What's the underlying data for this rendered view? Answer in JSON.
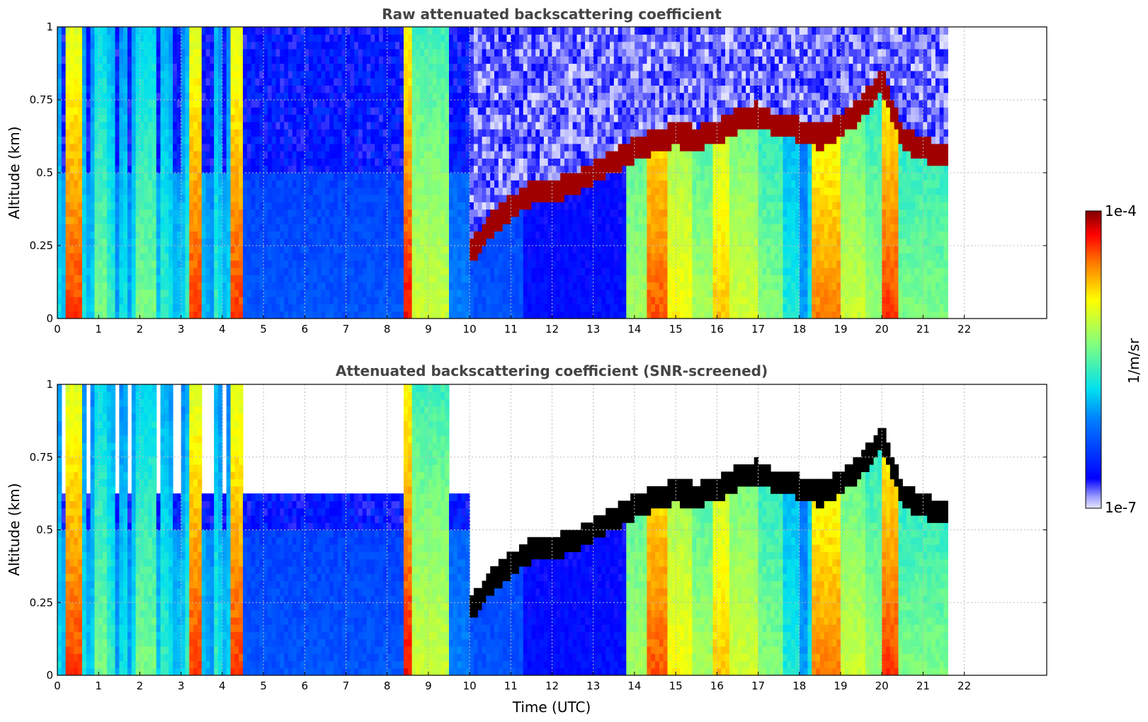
{
  "figure": {
    "xlabel": "Time (UTC)"
  },
  "chart_data": [
    {
      "type": "heatmap",
      "title": "Raw attenuated backscattering coefficient",
      "ylabel": "Altitude (km)",
      "xlim": [
        0,
        24
      ],
      "ylim": [
        0,
        1
      ],
      "data_end_x": 21.6,
      "x_ticks": [
        "0",
        "1",
        "2",
        "3",
        "4",
        "5",
        "6",
        "7",
        "8",
        "9",
        "10",
        "11",
        "12",
        "13",
        "14",
        "15",
        "16",
        "17",
        "18",
        "19",
        "20",
        "21",
        "22"
      ],
      "y_ticks": [
        "0",
        "0.25",
        "0.5",
        "0.75",
        "1"
      ],
      "grid": true,
      "screened": false,
      "cloud_base_trace": [
        [
          10.0,
          0.22
        ],
        [
          10.5,
          0.32
        ],
        [
          11.0,
          0.38
        ],
        [
          11.5,
          0.43
        ],
        [
          12.0,
          0.44
        ],
        [
          12.5,
          0.46
        ],
        [
          13.0,
          0.5
        ],
        [
          13.5,
          0.54
        ],
        [
          14.0,
          0.58
        ],
        [
          14.5,
          0.61
        ],
        [
          15.0,
          0.63
        ],
        [
          15.5,
          0.62
        ],
        [
          16.0,
          0.64
        ],
        [
          16.5,
          0.68
        ],
        [
          17.0,
          0.7
        ],
        [
          17.5,
          0.66
        ],
        [
          18.0,
          0.65
        ],
        [
          18.5,
          0.62
        ],
        [
          19.0,
          0.66
        ],
        [
          19.5,
          0.72
        ],
        [
          20.0,
          0.82
        ],
        [
          20.5,
          0.62
        ],
        [
          21.0,
          0.58
        ],
        [
          21.6,
          0.56
        ]
      ]
    },
    {
      "type": "heatmap",
      "title": "Attenuated backscattering coefficient (SNR-screened)",
      "ylabel": "Altitude (km)",
      "xlim": [
        0,
        24
      ],
      "ylim": [
        0,
        1
      ],
      "data_end_x": 21.6,
      "x_ticks": [
        "0",
        "1",
        "2",
        "3",
        "4",
        "5",
        "6",
        "7",
        "8",
        "9",
        "10",
        "11",
        "12",
        "13",
        "14",
        "15",
        "16",
        "17",
        "18",
        "19",
        "20",
        "21",
        "22"
      ],
      "y_ticks": [
        "0",
        "0.25",
        "0.5",
        "0.75",
        "1"
      ],
      "grid": true,
      "screened": true,
      "cloud_base_trace": [
        [
          10.0,
          0.22
        ],
        [
          10.5,
          0.32
        ],
        [
          11.0,
          0.38
        ],
        [
          11.5,
          0.43
        ],
        [
          12.0,
          0.44
        ],
        [
          12.5,
          0.46
        ],
        [
          13.0,
          0.5
        ],
        [
          13.5,
          0.54
        ],
        [
          14.0,
          0.58
        ],
        [
          14.5,
          0.61
        ],
        [
          15.0,
          0.63
        ],
        [
          15.5,
          0.62
        ],
        [
          16.0,
          0.64
        ],
        [
          16.5,
          0.68
        ],
        [
          17.0,
          0.7
        ],
        [
          17.5,
          0.66
        ],
        [
          18.0,
          0.65
        ],
        [
          18.5,
          0.62
        ],
        [
          19.0,
          0.66
        ],
        [
          19.5,
          0.72
        ],
        [
          20.0,
          0.82
        ],
        [
          20.5,
          0.62
        ],
        [
          21.0,
          0.58
        ],
        [
          21.6,
          0.56
        ]
      ]
    }
  ],
  "colorbar": {
    "label": "1/m/sr",
    "min_label": "1e-7",
    "max_label": "1e-4",
    "scale": "log",
    "colormap": "jet"
  },
  "colors": {
    "title": "#444444",
    "grid": "#bdbdbd",
    "cloud": "#8b0000",
    "screened_saturation": "#000000"
  }
}
